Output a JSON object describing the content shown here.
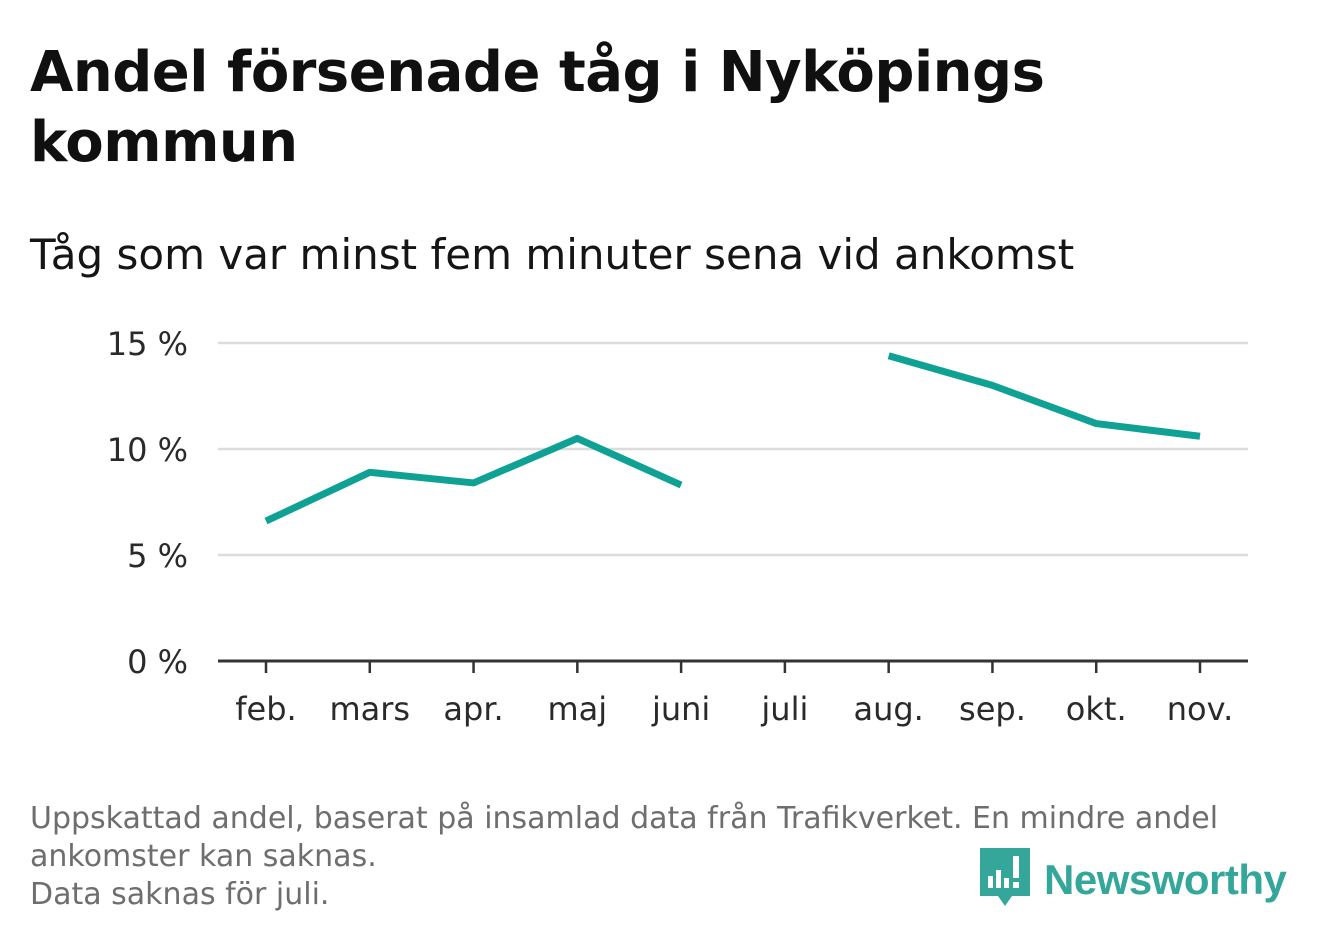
{
  "title": "Andel försenade tåg i Nyköpings kommun",
  "subtitle": "Tåg som var minst fem minuter sena vid ankomst",
  "footnote": {
    "line1": "Uppskattad andel, baserat på insamlad data från Trafikverket. En mindre andel ankomster kan saknas.",
    "line2": "Data saknas för juli."
  },
  "brand": {
    "name": "Newsworthy",
    "logo_icon": "newsworthy-logo-icon",
    "color": "#35a79a"
  },
  "chart_data": {
    "type": "line",
    "categories": [
      "feb.",
      "mars",
      "apr.",
      "maj",
      "juni",
      "juli",
      "aug.",
      "sep.",
      "okt.",
      "nov."
    ],
    "series": [
      {
        "values": [
          6.6,
          8.9,
          8.4,
          10.5,
          8.3,
          null,
          14.4,
          13.0,
          11.2,
          10.6
        ],
        "color": "#0fa294"
      }
    ],
    "ylim": [
      0,
      15
    ],
    "yticks": [
      0,
      5,
      10,
      15
    ],
    "ytick_labels": [
      "0 %",
      "5 %",
      "10 %",
      "15 %"
    ],
    "grid": true
  }
}
